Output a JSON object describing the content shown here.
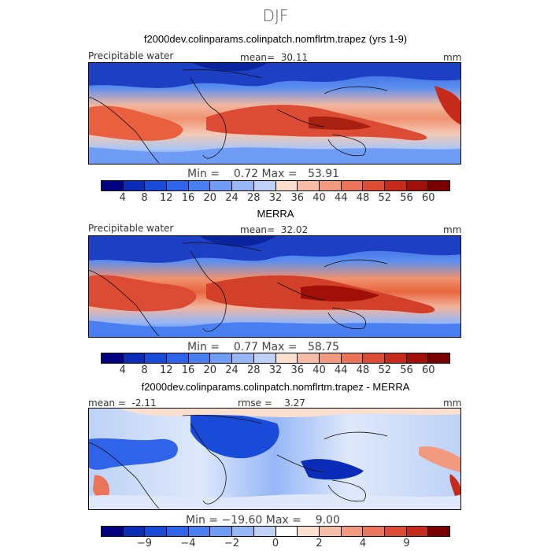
{
  "title": "DJF",
  "panels": [
    {
      "subtitle": "f2000dev.colinparams.colinpatch.nomflrtm.trapez (yrs 1-9)",
      "variable": "Precipitable water",
      "stat1_label": "mean=",
      "stat1_value": "30.11",
      "units": "mm",
      "min_label": "Min =",
      "min_value": "0.72",
      "max_label": "Max =",
      "max_value": "53.91",
      "colorbar_ticks": [
        "4",
        "8",
        "12",
        "16",
        "20",
        "24",
        "28",
        "32",
        "36",
        "40",
        "44",
        "48",
        "52",
        "56",
        "60"
      ],
      "colorbar_colors": [
        "#000080",
        "#0a2cb8",
        "#1a4ad8",
        "#2f64ea",
        "#4a7ff2",
        "#6f9cf5",
        "#96b7f6",
        "#bdd2f6",
        "#fbe0d0",
        "#f6bca6",
        "#f19a80",
        "#ea745a",
        "#dc4c34",
        "#c52a1a",
        "#a01008",
        "#7a0000"
      ]
    },
    {
      "subtitle": "MERRA",
      "variable": "Precipitable water",
      "stat1_label": "mean=",
      "stat1_value": "32.02",
      "units": "mm",
      "min_label": "Min =",
      "min_value": "0.77",
      "max_label": "Max =",
      "max_value": "58.75",
      "colorbar_ticks": [
        "4",
        "8",
        "12",
        "16",
        "20",
        "24",
        "28",
        "32",
        "36",
        "40",
        "44",
        "48",
        "52",
        "56",
        "60"
      ],
      "colorbar_colors": [
        "#000080",
        "#0a2cb8",
        "#1a4ad8",
        "#2f64ea",
        "#4a7ff2",
        "#6f9cf5",
        "#96b7f6",
        "#bdd2f6",
        "#fbe0d0",
        "#f6bca6",
        "#f19a80",
        "#ea745a",
        "#dc4c34",
        "#c52a1a",
        "#a01008",
        "#7a0000"
      ]
    },
    {
      "subtitle": "f2000dev.colinparams.colinpatch.nomflrtm.trapez - MERRA",
      "stat1_label": "mean =",
      "stat1_value": "-2.11",
      "stat2_label": "rmse =",
      "stat2_value": "3.27",
      "units": "mm",
      "min_label": "Min =",
      "min_value": "−19.60",
      "max_label": "Max =",
      "max_value": "9.00",
      "colorbar_ticks": [
        "−9",
        "−4",
        "−2",
        "0",
        "2",
        "4",
        "9"
      ],
      "colorbar_colors": [
        "#000080",
        "#0a2cb8",
        "#1a4ad8",
        "#2f64ea",
        "#4a7ff2",
        "#6f9cf5",
        "#96b7f6",
        "#bdd2f6",
        "#ffffff",
        "#fbe0d0",
        "#f6bca6",
        "#f19a80",
        "#ea745a",
        "#dc4c34",
        "#c52a1a",
        "#7a0000"
      ]
    }
  ]
}
